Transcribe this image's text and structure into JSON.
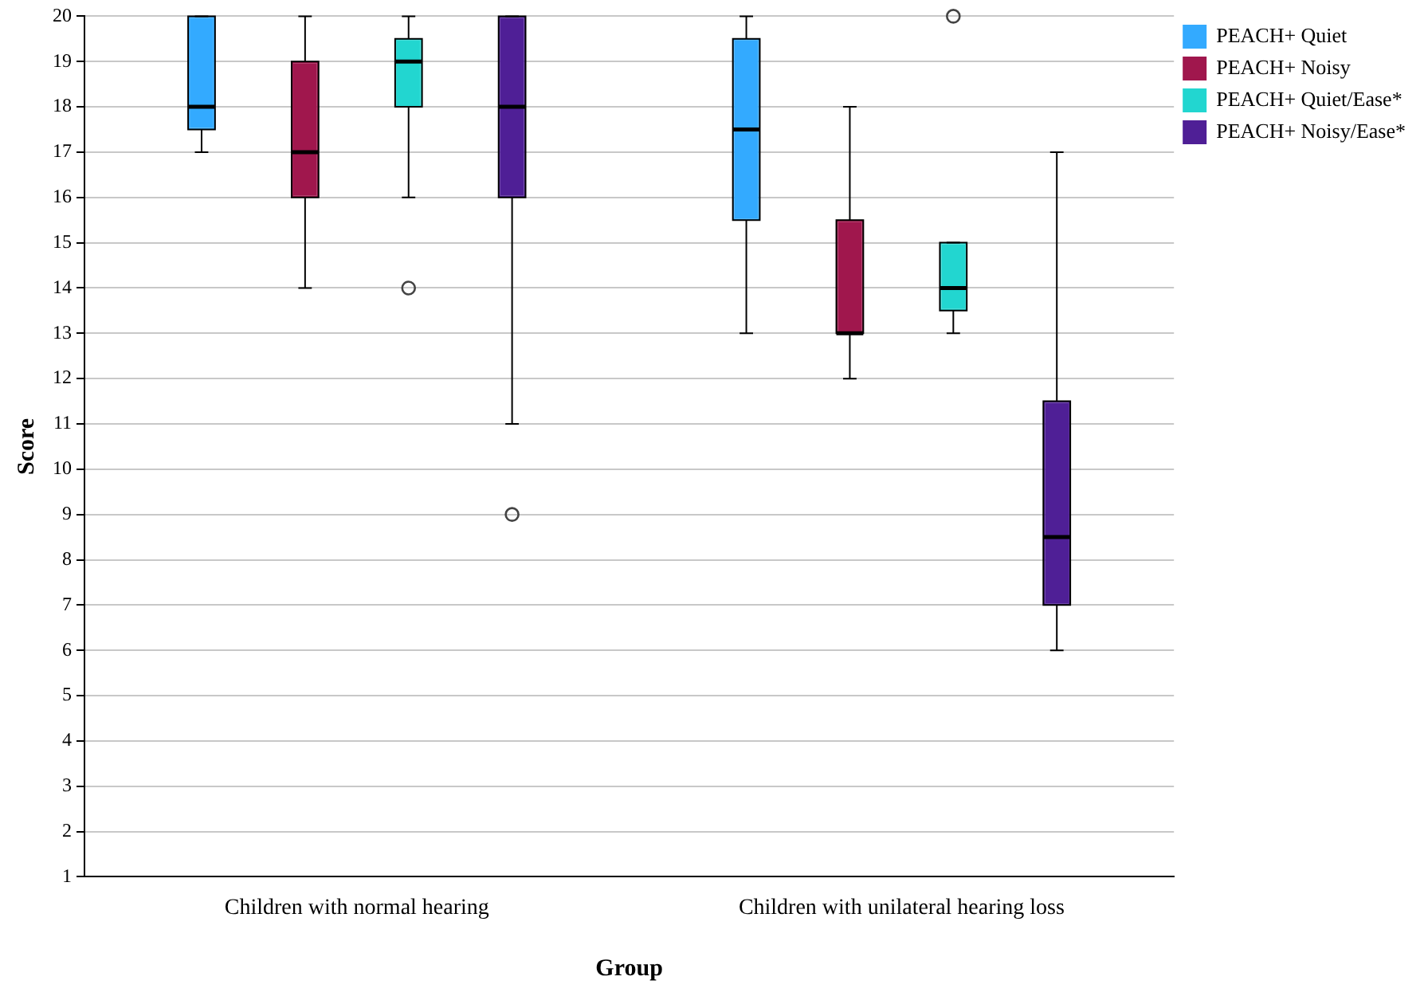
{
  "chart_data": {
    "type": "box",
    "xlabel": "Group",
    "ylabel": "Score",
    "categories": [
      "Children with normal hearing",
      "Children with unilateral hearing loss"
    ],
    "ylim": [
      1,
      20
    ],
    "yticks": [
      1,
      2,
      3,
      4,
      5,
      6,
      7,
      8,
      9,
      10,
      11,
      12,
      13,
      14,
      15,
      16,
      17,
      18,
      19,
      20
    ],
    "grid": "y",
    "legend": "top right",
    "series": [
      {
        "name": "PEACH+ Quiet",
        "color": "#33aaff",
        "boxes": [
          {
            "low": 17,
            "q1": 17.5,
            "median": 18,
            "q3": 20,
            "high": 20
          },
          {
            "low": 13,
            "q1": 15.5,
            "median": 17.5,
            "q3": 19.5,
            "high": 20
          }
        ]
      },
      {
        "name": "PEACH+ Noisy",
        "color": "#a0174d",
        "boxes": [
          {
            "low": 14,
            "q1": 16,
            "median": 17,
            "q3": 19,
            "high": 20
          },
          {
            "low": 12,
            "q1": 13,
            "median": 13,
            "q3": 15.5,
            "high": 18
          }
        ]
      },
      {
        "name": "PEACH+ Quiet/Ease*",
        "color": "#22d6d0",
        "boxes": [
          {
            "low": 16,
            "q1": 18,
            "median": 19,
            "q3": 19.5,
            "high": 20,
            "outliers": [
              14
            ]
          },
          {
            "low": 13,
            "q1": 13.5,
            "median": 14,
            "q3": 15,
            "high": 15,
            "outliers": [
              20
            ]
          }
        ]
      },
      {
        "name": "PEACH+ Noisy/Ease*",
        "color": "#4f1f96",
        "boxes": [
          {
            "low": 11,
            "q1": 16,
            "median": 18,
            "q3": 20,
            "high": 20,
            "outliers": [
              9
            ]
          },
          {
            "low": 6,
            "q1": 7,
            "median": 8.5,
            "q3": 11.5,
            "high": 17
          }
        ]
      }
    ]
  }
}
